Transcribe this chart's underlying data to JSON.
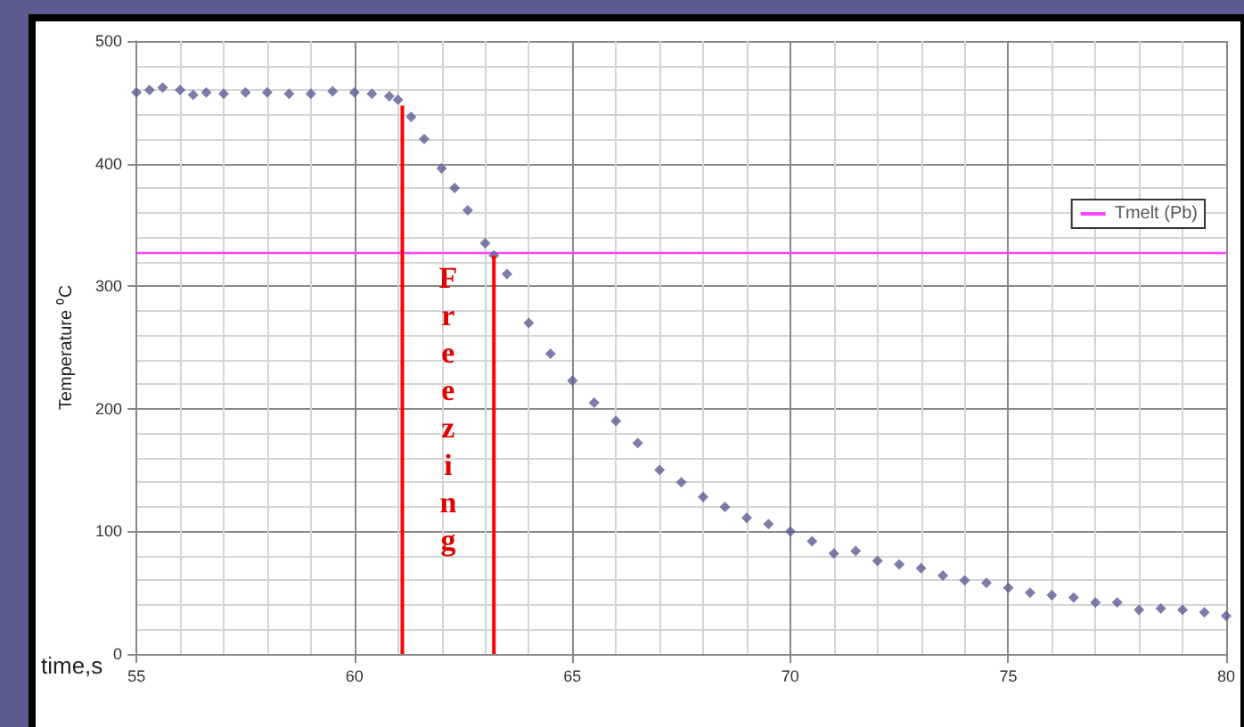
{
  "chart_data": {
    "type": "scatter",
    "xlabel": "time,s",
    "ylabel": "Temperature ⁰C",
    "xlim": [
      55,
      80
    ],
    "xticks": [
      55,
      60,
      65,
      70,
      75,
      80
    ],
    "ylim": [
      0,
      500
    ],
    "yticks": [
      0,
      100,
      200,
      300,
      400,
      500
    ],
    "grid": true,
    "legend": "right",
    "marker": "diamond",
    "series": [
      {
        "color": "#5c5c94",
        "x": [
          55,
          55.3,
          55.6,
          56,
          56.3,
          56.6,
          57,
          57.5,
          58,
          58.5,
          59,
          59.5,
          60,
          60.4,
          60.8,
          61,
          61.3,
          61.6,
          62,
          62.3,
          62.6,
          63,
          63.2,
          63.5,
          64,
          64.5,
          65,
          65.5,
          66,
          66.5,
          67,
          67.5,
          68,
          68.5,
          69,
          69.5,
          70,
          70.5,
          71,
          71.5,
          72,
          72.5,
          73,
          73.5,
          74,
          74.5,
          75,
          75.5,
          76,
          76.5,
          77,
          77.5,
          78,
          78.5,
          79,
          79.5,
          80
        ],
        "values": [
          458,
          460,
          462,
          460,
          456,
          458,
          457,
          458,
          458,
          457,
          457,
          459,
          458,
          457,
          455,
          452,
          438,
          420,
          396,
          380,
          362,
          335,
          325,
          310,
          270,
          245,
          223,
          205,
          190,
          172,
          150,
          140,
          128,
          120,
          111,
          106,
          100,
          92,
          82,
          84,
          76,
          73,
          70,
          64,
          60,
          58,
          54,
          50,
          48,
          46,
          42,
          42,
          36,
          37,
          36,
          34,
          31
        ]
      },
      {
        "type": "line",
        "name": "Tmelt (Pb)",
        "color": "#ff44ff",
        "marker": "none",
        "x": [
          55,
          80
        ],
        "values": [
          327,
          327
        ]
      }
    ],
    "ref_lines": [
      {
        "axis": "x",
        "value": 61.1,
        "color": "#ff0000"
      },
      {
        "axis": "x",
        "value": 63.2,
        "color": "#ff0000"
      }
    ],
    "annotations": [
      "Freezing"
    ]
  }
}
